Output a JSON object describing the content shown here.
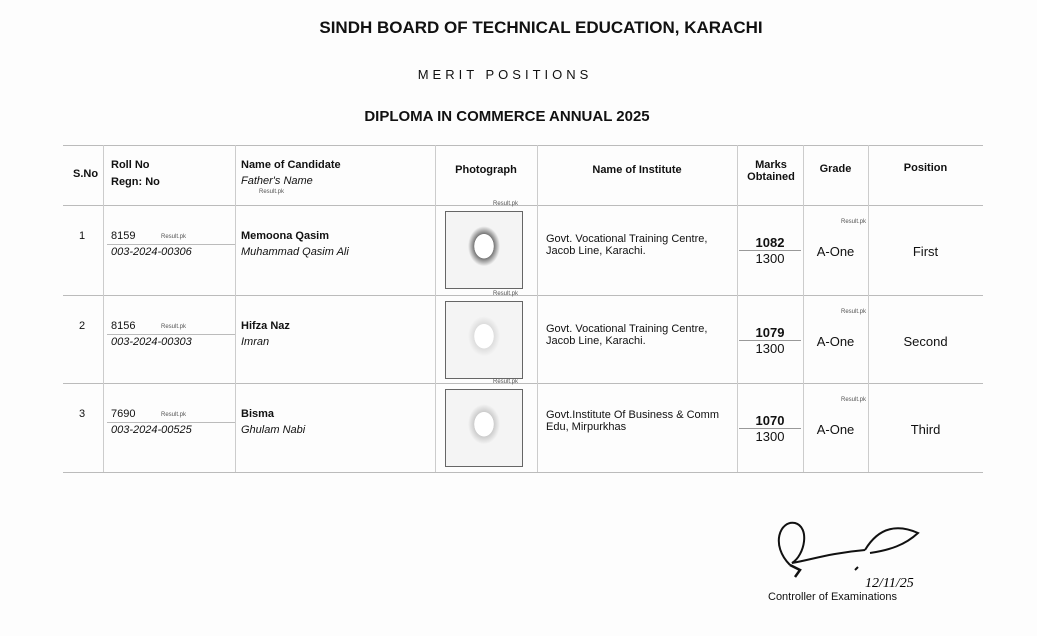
{
  "header": {
    "title": "SINDH BOARD OF TECHNICAL EDUCATION, KARACHI",
    "subtitle": "MERIT POSITIONS",
    "exam": "DIPLOMA IN COMMERCE ANNUAL 2025"
  },
  "columns": {
    "sno": "S.No",
    "roll": "Roll No",
    "regn": "Regn: No",
    "name": "Name of Candidate",
    "father": "Father's Name",
    "photo": "Photograph",
    "institute": "Name of Institute",
    "marks": "Marks Obtained",
    "grade": "Grade",
    "position": "Position"
  },
  "watermark": "Result.pk",
  "rows": [
    {
      "sno": "1",
      "roll": "8159",
      "regn": "003-2024-00306",
      "name": "Memoona Qasim",
      "father": "Muhammad Qasim Ali",
      "institute": "Govt. Vocational Training Centre, Jacob Line, Karachi.",
      "marks": "1082",
      "total": "1300",
      "grade": "A-One",
      "position": "First"
    },
    {
      "sno": "2",
      "roll": "8156",
      "regn": "003-2024-00303",
      "name": "Hifza Naz",
      "father": "Imran",
      "institute": "Govt. Vocational Training Centre, Jacob Line, Karachi.",
      "marks": "1079",
      "total": "1300",
      "grade": "A-One",
      "position": "Second"
    },
    {
      "sno": "3",
      "roll": "7690",
      "regn": "003-2024-00525",
      "name": "Bisma",
      "father": "Ghulam Nabi",
      "institute": "Govt.Institute Of Business & Comm Edu, Mirpurkhas",
      "marks": "1070",
      "total": "1300",
      "grade": "A-One",
      "position": "Third"
    }
  ],
  "signature": {
    "date": "12/11/25",
    "title": "Controller of Examinations"
  }
}
